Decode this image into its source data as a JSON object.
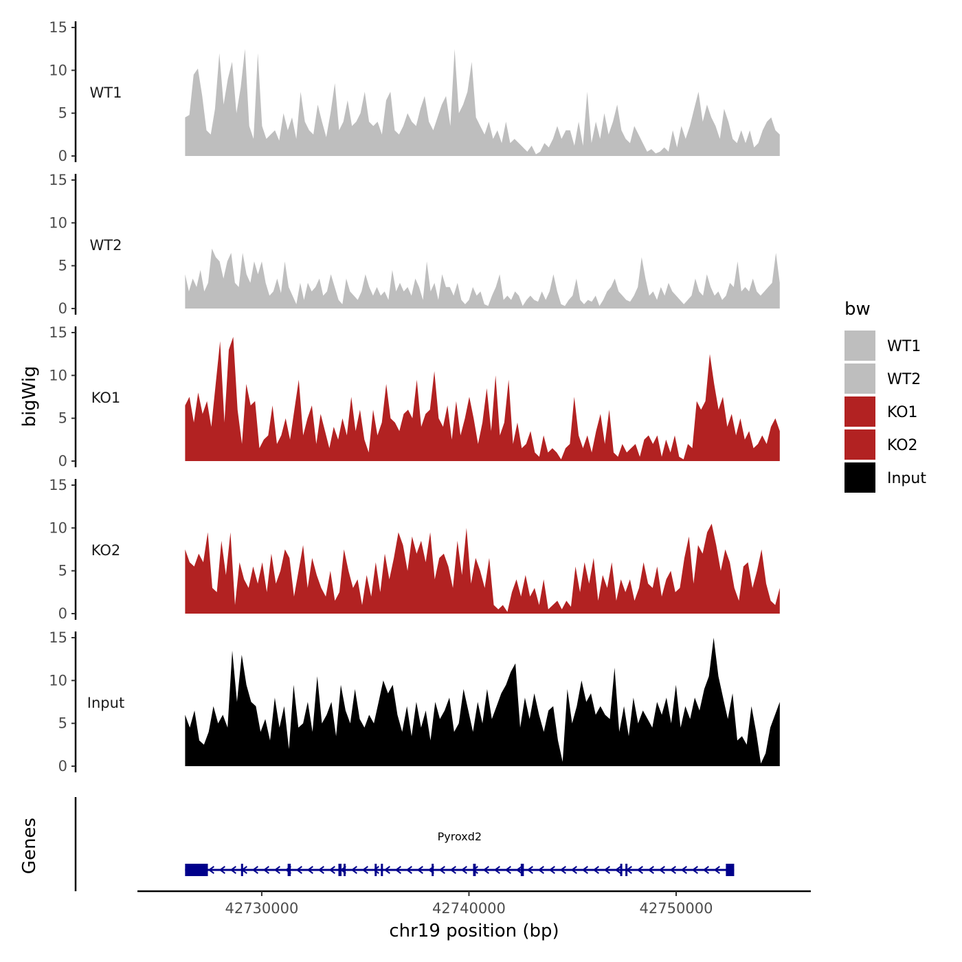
{
  "chart_data": {
    "type": "area",
    "x_axis": {
      "label": "chr19 position (bp)",
      "range": [
        42724000,
        42756500
      ],
      "ticks": [
        42730000,
        42740000,
        42750000
      ],
      "tick_labels": [
        "42730000",
        "42740000",
        "42750000"
      ]
    },
    "y_axis": {
      "label": "bigWig",
      "range": [
        0,
        15
      ],
      "ticks": [
        0,
        5,
        10,
        15
      ],
      "tick_labels": [
        "0",
        "5",
        "10",
        "15"
      ]
    },
    "x_extent": [
      42726300,
      42755000
    ],
    "series": [
      {
        "name": "WT1",
        "color": "#bebebe",
        "values": [
          4.5,
          4.8,
          9.5,
          10.2,
          7.0,
          3.0,
          2.5,
          5.5,
          12.0,
          6.0,
          9.0,
          11.0,
          5.0,
          8.0,
          12.5,
          3.5,
          2.0,
          12.0,
          3.5,
          2.0,
          2.5,
          3.0,
          1.8,
          5.0,
          3.0,
          4.5,
          2.0,
          7.5,
          4.0,
          3.0,
          2.5,
          6.0,
          4.0,
          2.2,
          5.0,
          8.5,
          3.0,
          4.0,
          6.5,
          3.5,
          4.0,
          5.0,
          7.5,
          4.0,
          3.5,
          4.0,
          2.5,
          6.5,
          7.5,
          3.0,
          2.5,
          3.5,
          5.0,
          4.0,
          3.5,
          5.5,
          7.0,
          4.0,
          3.0,
          4.5,
          6.0,
          7.0,
          3.5,
          12.5,
          5.0,
          6.0,
          7.5,
          11.0,
          4.5,
          3.5,
          2.5,
          4.0,
          2.0,
          3.0,
          1.5,
          4.0,
          1.5,
          2.0,
          1.5,
          1.0,
          0.5,
          1.2,
          0.2,
          0.5,
          1.5,
          1.0,
          2.0,
          3.5,
          2.0,
          3.0,
          3.0,
          1.2,
          4.0,
          1.2,
          7.5,
          1.5,
          4.0,
          2.0,
          5.0,
          2.5,
          4.0,
          6.0,
          3.0,
          2.0,
          1.5,
          3.5,
          2.5,
          1.5,
          0.5,
          0.8,
          0.3,
          0.5,
          1.0,
          0.5,
          3.0,
          1.0,
          3.5,
          2.0,
          3.5,
          5.5,
          7.5,
          4.0,
          6.0,
          4.5,
          3.5,
          2.0,
          5.5,
          4.0,
          2.0,
          1.5,
          3.0,
          1.5,
          3.0,
          1.0,
          1.5,
          3.0,
          4.0,
          4.5,
          3.0,
          2.5
        ],
        "label_position": "WT1"
      },
      {
        "name": "WT2",
        "color": "#bebebe",
        "values": [
          4.0,
          2.0,
          3.5,
          2.5,
          4.5,
          2.0,
          3.0,
          7.0,
          6.0,
          5.5,
          3.5,
          5.5,
          6.5,
          3.0,
          2.5,
          6.5,
          4.0,
          3.0,
          5.5,
          4.0,
          5.5,
          3.0,
          1.5,
          2.0,
          3.5,
          1.8,
          5.5,
          2.5,
          1.5,
          0.5,
          3.0,
          1.0,
          3.0,
          2.0,
          2.5,
          3.5,
          1.5,
          2.0,
          4.0,
          2.5,
          1.0,
          0.5,
          3.5,
          2.0,
          1.5,
          1.0,
          2.0,
          4.0,
          2.5,
          1.5,
          2.5,
          1.5,
          2.0,
          1.0,
          4.5,
          2.0,
          3.0,
          2.0,
          2.5,
          1.5,
          3.5,
          2.5,
          1.0,
          5.5,
          2.0,
          3.0,
          1.0,
          4.0,
          2.5,
          2.5,
          1.5,
          3.0,
          1.0,
          0.5,
          1.0,
          2.5,
          1.5,
          2.0,
          0.5,
          0.3,
          1.5,
          2.5,
          4.0,
          1.0,
          1.5,
          1.0,
          2.0,
          1.5,
          0.3,
          1.0,
          1.5,
          1.0,
          0.8,
          2.0,
          1.0,
          2.0,
          4.0,
          2.0,
          0.5,
          0.3,
          1.0,
          1.5,
          3.5,
          1.0,
          0.5,
          1.0,
          0.8,
          1.5,
          0.3,
          1.0,
          2.0,
          2.5,
          3.5,
          2.0,
          1.5,
          1.0,
          0.8,
          1.5,
          2.5,
          6.0,
          3.5,
          1.5,
          2.0,
          1.0,
          2.5,
          1.5,
          3.0,
          2.0,
          1.5,
          1.0,
          0.5,
          1.0,
          1.5,
          3.5,
          2.0,
          1.5,
          4.0,
          2.5,
          1.5,
          2.0,
          1.0,
          1.5,
          3.0,
          2.5,
          5.5,
          2.0,
          2.5,
          2.0,
          3.5,
          2.0,
          1.5,
          2.0,
          2.5,
          3.0,
          6.5,
          3.0
        ],
        "label_position": "WT2"
      },
      {
        "name": "KO1",
        "color": "#b22222",
        "values": [
          6.5,
          7.5,
          4.5,
          8.0,
          5.5,
          7.0,
          4.0,
          9.0,
          14.0,
          4.5,
          13.0,
          14.5,
          6.0,
          2.0,
          9.0,
          6.5,
          7.0,
          1.5,
          2.5,
          3.0,
          6.5,
          2.0,
          3.0,
          5.0,
          2.5,
          6.0,
          9.5,
          3.0,
          5.0,
          6.5,
          2.0,
          5.5,
          3.5,
          1.5,
          4.0,
          2.5,
          5.0,
          3.0,
          7.5,
          3.5,
          6.0,
          2.5,
          1.0,
          6.0,
          3.0,
          4.5,
          9.0,
          5.0,
          4.5,
          3.5,
          5.5,
          6.0,
          5.0,
          9.5,
          4.0,
          5.5,
          6.0,
          10.5,
          5.0,
          4.0,
          6.5,
          2.5,
          7.0,
          3.0,
          5.0,
          7.5,
          5.0,
          2.0,
          4.5,
          8.5,
          3.5,
          10.0,
          3.0,
          4.5,
          9.5,
          2.0,
          4.5,
          1.5,
          2.0,
          3.5,
          1.0,
          0.5,
          3.0,
          1.0,
          1.5,
          1.0,
          0.2,
          1.5,
          2.0,
          7.5,
          3.0,
          1.5,
          3.0,
          1.0,
          3.5,
          5.5,
          2.0,
          6.0,
          1.0,
          0.5,
          2.0,
          1.0,
          1.5,
          2.0,
          0.5,
          2.5,
          3.0,
          2.0,
          3.0,
          0.5,
          2.5,
          1.0,
          3.0,
          0.5,
          0.2,
          2.0,
          1.5,
          7.0,
          6.0,
          7.0,
          12.5,
          9.0,
          6.0,
          7.5,
          4.0,
          5.5,
          3.0,
          5.0,
          2.5,
          3.5,
          1.5,
          2.0,
          3.0,
          2.0,
          4.0,
          5.0,
          3.5
        ],
        "label_position": "KO1"
      },
      {
        "name": "KO2",
        "color": "#b22222",
        "values": [
          7.5,
          6.0,
          5.5,
          7.0,
          6.0,
          9.5,
          3.0,
          2.5,
          8.5,
          4.5,
          9.5,
          1.0,
          6.0,
          4.0,
          3.0,
          5.5,
          3.5,
          6.0,
          2.5,
          7.0,
          3.5,
          5.0,
          7.5,
          6.5,
          2.0,
          5.0,
          8.0,
          3.0,
          6.5,
          4.5,
          3.0,
          2.0,
          5.0,
          1.5,
          2.5,
          7.5,
          5.0,
          3.0,
          4.0,
          1.0,
          4.5,
          2.0,
          6.0,
          2.5,
          7.0,
          4.0,
          6.5,
          9.5,
          8.0,
          5.0,
          9.0,
          7.0,
          8.5,
          6.0,
          9.5,
          4.0,
          6.5,
          7.0,
          5.5,
          3.0,
          8.5,
          4.5,
          10.0,
          3.5,
          6.5,
          5.0,
          3.0,
          6.5,
          1.0,
          0.5,
          1.0,
          0.2,
          2.5,
          4.0,
          2.0,
          4.5,
          2.0,
          3.0,
          1.0,
          4.0,
          0.5,
          1.0,
          1.5,
          0.5,
          1.5,
          0.8,
          5.5,
          2.5,
          6.0,
          3.5,
          6.5,
          1.5,
          4.5,
          3.0,
          6.0,
          1.5,
          4.0,
          2.5,
          4.0,
          1.5,
          3.0,
          6.0,
          3.5,
          3.0,
          5.5,
          2.0,
          4.0,
          5.0,
          2.5,
          3.0,
          6.5,
          9.0,
          3.5,
          8.0,
          7.0,
          9.5,
          10.5,
          8.0,
          5.0,
          7.5,
          6.0,
          3.0,
          1.5,
          5.5,
          6.0,
          3.0,
          5.0,
          7.5,
          3.5,
          1.5,
          1.0,
          3.0
        ],
        "label_position": "KO2"
      },
      {
        "name": "Input",
        "color": "#000000",
        "values": [
          6.0,
          4.5,
          6.5,
          3.0,
          2.5,
          4.0,
          7.0,
          5.0,
          6.0,
          4.5,
          13.5,
          7.5,
          13.0,
          9.5,
          7.5,
          7.0,
          4.0,
          5.5,
          3.0,
          8.0,
          4.5,
          7.0,
          2.0,
          9.5,
          4.5,
          5.0,
          7.5,
          4.0,
          10.5,
          5.0,
          6.0,
          7.5,
          3.5,
          9.5,
          6.5,
          5.0,
          9.0,
          5.5,
          4.5,
          6.0,
          5.0,
          7.5,
          10.0,
          8.5,
          9.5,
          6.0,
          4.0,
          7.0,
          3.5,
          7.5,
          4.5,
          6.5,
          3.0,
          7.5,
          5.5,
          6.5,
          8.0,
          4.0,
          5.0,
          9.0,
          6.5,
          4.0,
          7.5,
          5.0,
          9.0,
          5.5,
          7.0,
          8.5,
          9.5,
          11.0,
          12.0,
          4.5,
          8.0,
          5.5,
          8.5,
          6.0,
          4.0,
          6.5,
          7.0,
          3.0,
          0.5,
          9.0,
          5.0,
          7.0,
          10.0,
          7.5,
          8.5,
          6.0,
          7.0,
          6.0,
          5.5,
          11.5,
          4.0,
          7.0,
          3.5,
          8.0,
          5.0,
          6.5,
          5.5,
          4.5,
          7.5,
          6.0,
          8.0,
          5.0,
          9.5,
          4.5,
          7.0,
          5.5,
          8.0,
          6.5,
          9.0,
          10.5,
          15.0,
          10.5,
          8.0,
          5.5,
          8.5,
          3.0,
          3.5,
          2.5,
          7.0,
          4.0,
          0.3,
          1.5,
          4.5,
          6.0,
          7.5
        ],
        "label_position": "Input"
      }
    ],
    "legend": {
      "title": "bw",
      "position": "right",
      "entries": [
        {
          "label": "WT1",
          "color": "#bebebe"
        },
        {
          "label": "WT2",
          "color": "#bebebe"
        },
        {
          "label": "KO1",
          "color": "#b22222"
        },
        {
          "label": "KO2",
          "color": "#b22222"
        },
        {
          "label": "Input",
          "color": "#000000"
        }
      ]
    },
    "genes_track": {
      "label": "Genes",
      "color": "#00008b",
      "strand": "-",
      "genes": [
        {
          "name": "Pyroxd2",
          "start": 42726300,
          "end": 42752800,
          "exons": [
            [
              42726300,
              42727400
            ],
            [
              42729000,
              42729080
            ],
            [
              42731250,
              42731400
            ],
            [
              42733700,
              42733850
            ],
            [
              42733950,
              42734020
            ],
            [
              42735450,
              42735550
            ],
            [
              42735750,
              42735850
            ],
            [
              42738200,
              42738250
            ],
            [
              42740200,
              42740330
            ],
            [
              42742500,
              42742650
            ],
            [
              42747300,
              42747400
            ],
            [
              42747550,
              42747650
            ],
            [
              42752400,
              42752800
            ]
          ]
        }
      ]
    }
  }
}
